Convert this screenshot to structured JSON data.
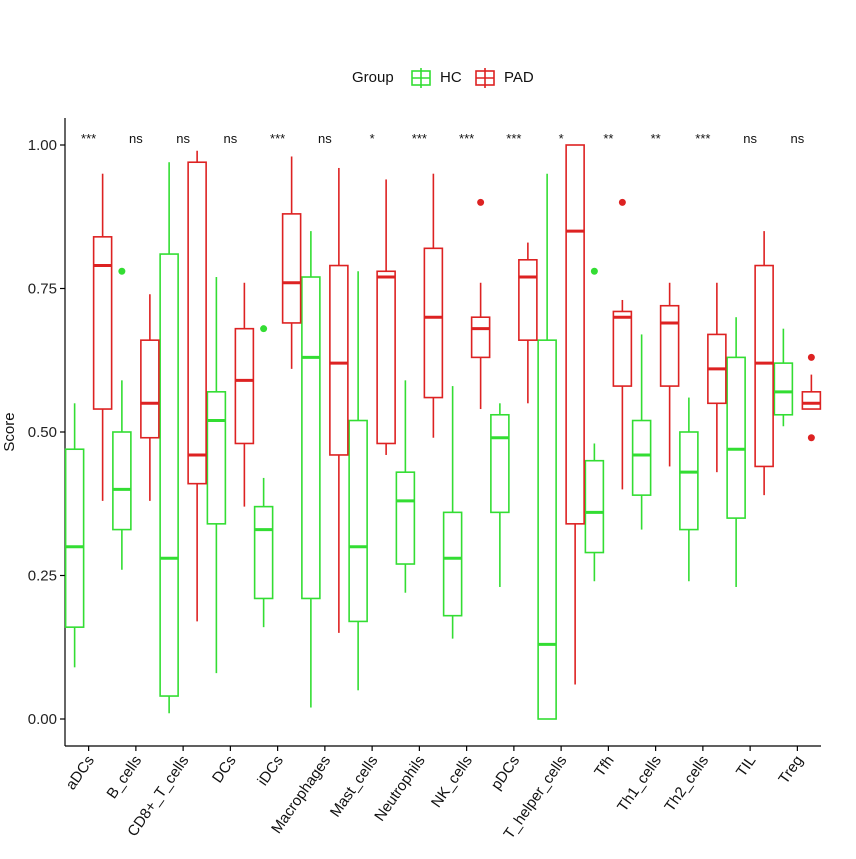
{
  "chart_data": {
    "type": "boxplot",
    "ylabel": "Score",
    "ylim": [
      -0.05,
      1.05
    ],
    "yticks": [
      0.0,
      0.25,
      0.5,
      0.75,
      1.0
    ],
    "ytick_labels": [
      "0.00",
      "0.25",
      "0.50",
      "0.75",
      "1.00"
    ],
    "grid": false,
    "legend": {
      "title": "Group",
      "placement": "top",
      "entries": [
        {
          "name": "HC",
          "color": "#33dd33"
        },
        {
          "name": "PAD",
          "color": "#dd2222"
        }
      ]
    },
    "categories": [
      "aDCs",
      "B_cells",
      "CD8+_T_cells",
      "DCs",
      "iDCs",
      "Macrophages",
      "Mast_cells",
      "Neutrophils",
      "NK_cells",
      "pDCs",
      "T_helper_cells",
      "Tfh",
      "Th1_cells",
      "Th2_cells",
      "TIL",
      "Treg"
    ],
    "significance": [
      "***",
      "ns",
      "ns",
      "ns",
      "***",
      "ns",
      "*",
      "***",
      "***",
      "***",
      "*",
      "**",
      "**",
      "***",
      "ns",
      "ns"
    ],
    "series": [
      {
        "name": "HC",
        "color": "#33dd33",
        "boxes": [
          {
            "min": 0.09,
            "q1": 0.16,
            "median": 0.3,
            "q3": 0.47,
            "max": 0.55,
            "outliers": []
          },
          {
            "min": 0.26,
            "q1": 0.33,
            "median": 0.4,
            "q3": 0.5,
            "max": 0.59,
            "outliers": [
              0.78
            ]
          },
          {
            "min": 0.01,
            "q1": 0.04,
            "median": 0.28,
            "q3": 0.81,
            "max": 0.97,
            "outliers": []
          },
          {
            "min": 0.08,
            "q1": 0.34,
            "median": 0.52,
            "q3": 0.57,
            "max": 0.77,
            "outliers": []
          },
          {
            "min": 0.16,
            "q1": 0.21,
            "median": 0.33,
            "q3": 0.37,
            "max": 0.42,
            "outliers": [
              0.68
            ]
          },
          {
            "min": 0.02,
            "q1": 0.21,
            "median": 0.63,
            "q3": 0.77,
            "max": 0.85,
            "outliers": []
          },
          {
            "min": 0.05,
            "q1": 0.17,
            "median": 0.3,
            "q3": 0.52,
            "max": 0.78,
            "outliers": []
          },
          {
            "min": 0.22,
            "q1": 0.27,
            "median": 0.38,
            "q3": 0.43,
            "max": 0.59,
            "outliers": []
          },
          {
            "min": 0.14,
            "q1": 0.18,
            "median": 0.28,
            "q3": 0.36,
            "max": 0.58,
            "outliers": []
          },
          {
            "min": 0.23,
            "q1": 0.36,
            "median": 0.49,
            "q3": 0.53,
            "max": 0.55,
            "outliers": []
          },
          {
            "min": 0.0,
            "q1": 0.0,
            "median": 0.13,
            "q3": 0.66,
            "max": 0.95,
            "outliers": []
          },
          {
            "min": 0.24,
            "q1": 0.29,
            "median": 0.36,
            "q3": 0.45,
            "max": 0.48,
            "outliers": [
              0.78
            ]
          },
          {
            "min": 0.33,
            "q1": 0.39,
            "median": 0.46,
            "q3": 0.52,
            "max": 0.67,
            "outliers": []
          },
          {
            "min": 0.24,
            "q1": 0.33,
            "median": 0.43,
            "q3": 0.5,
            "max": 0.56,
            "outliers": []
          },
          {
            "min": 0.23,
            "q1": 0.35,
            "median": 0.47,
            "q3": 0.63,
            "max": 0.7,
            "outliers": []
          },
          {
            "min": 0.51,
            "q1": 0.53,
            "median": 0.57,
            "q3": 0.62,
            "max": 0.68,
            "outliers": []
          }
        ]
      },
      {
        "name": "PAD",
        "color": "#dd2222",
        "boxes": [
          {
            "min": 0.38,
            "q1": 0.54,
            "median": 0.79,
            "q3": 0.84,
            "max": 0.95,
            "outliers": []
          },
          {
            "min": 0.38,
            "q1": 0.49,
            "median": 0.55,
            "q3": 0.66,
            "max": 0.74,
            "outliers": []
          },
          {
            "min": 0.17,
            "q1": 0.41,
            "median": 0.46,
            "q3": 0.97,
            "max": 0.99,
            "outliers": []
          },
          {
            "min": 0.37,
            "q1": 0.48,
            "median": 0.59,
            "q3": 0.68,
            "max": 0.76,
            "outliers": []
          },
          {
            "min": 0.61,
            "q1": 0.69,
            "median": 0.76,
            "q3": 0.88,
            "max": 0.98,
            "outliers": []
          },
          {
            "min": 0.15,
            "q1": 0.46,
            "median": 0.62,
            "q3": 0.79,
            "max": 0.96,
            "outliers": []
          },
          {
            "min": 0.46,
            "q1": 0.48,
            "median": 0.77,
            "q3": 0.78,
            "max": 0.94,
            "outliers": []
          },
          {
            "min": 0.49,
            "q1": 0.56,
            "median": 0.7,
            "q3": 0.82,
            "max": 0.95,
            "outliers": []
          },
          {
            "min": 0.54,
            "q1": 0.63,
            "median": 0.68,
            "q3": 0.7,
            "max": 0.76,
            "outliers": [
              0.9
            ]
          },
          {
            "min": 0.55,
            "q1": 0.66,
            "median": 0.77,
            "q3": 0.8,
            "max": 0.83,
            "outliers": []
          },
          {
            "min": 0.06,
            "q1": 0.34,
            "median": 0.85,
            "q3": 1.0,
            "max": 1.0,
            "outliers": []
          },
          {
            "min": 0.4,
            "q1": 0.58,
            "median": 0.7,
            "q3": 0.71,
            "max": 0.73,
            "outliers": [
              0.9
            ]
          },
          {
            "min": 0.44,
            "q1": 0.58,
            "median": 0.69,
            "q3": 0.72,
            "max": 0.76,
            "outliers": []
          },
          {
            "min": 0.43,
            "q1": 0.55,
            "median": 0.61,
            "q3": 0.67,
            "max": 0.76,
            "outliers": []
          },
          {
            "min": 0.39,
            "q1": 0.44,
            "median": 0.62,
            "q3": 0.79,
            "max": 0.85,
            "outliers": []
          },
          {
            "min": 0.54,
            "q1": 0.54,
            "median": 0.55,
            "q3": 0.57,
            "max": 0.6,
            "outliers": [
              0.63,
              0.49
            ]
          }
        ]
      }
    ]
  }
}
